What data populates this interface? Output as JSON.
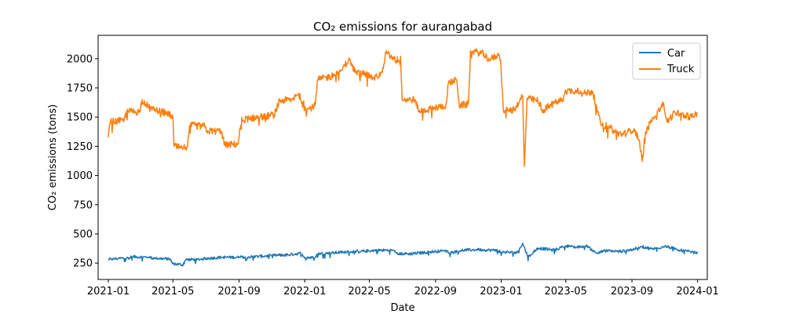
{
  "chart_data": {
    "type": "line",
    "title": "CO₂ emissions for aurangabad",
    "xlabel": "Date",
    "ylabel": "CO₂ emissions (tons)",
    "xlim": [
      "2020-12-13",
      "2024-01-19"
    ],
    "ylim": [
      110,
      2200
    ],
    "x_ticks": [
      "2021-01",
      "2021-05",
      "2021-09",
      "2022-01",
      "2022-05",
      "2022-09",
      "2023-01",
      "2023-05",
      "2023-09",
      "2024-01"
    ],
    "y_ticks": [
      250,
      500,
      750,
      1000,
      1250,
      1500,
      1750,
      2000
    ],
    "legend": {
      "position": "top-right"
    },
    "grid": false,
    "series": [
      {
        "name": "Car",
        "color": "#1f77b4",
        "points": [
          [
            "2021-01-01",
            280
          ],
          [
            "2021-01-20",
            290
          ],
          [
            "2021-02-10",
            295
          ],
          [
            "2021-02-15",
            305
          ],
          [
            "2021-03-15",
            300
          ],
          [
            "2021-04-01",
            290
          ],
          [
            "2021-04-25",
            285
          ],
          [
            "2021-04-30",
            245
          ],
          [
            "2021-05-20",
            235
          ],
          [
            "2021-05-25",
            280
          ],
          [
            "2021-06-15",
            280
          ],
          [
            "2021-07-01",
            290
          ],
          [
            "2021-08-01",
            300
          ],
          [
            "2021-09-01",
            300
          ],
          [
            "2021-10-01",
            305
          ],
          [
            "2021-11-01",
            315
          ],
          [
            "2021-12-01",
            320
          ],
          [
            "2021-12-25",
            335
          ],
          [
            "2022-01-01",
            300
          ],
          [
            "2022-01-20",
            295
          ],
          [
            "2022-01-25",
            330
          ],
          [
            "2022-02-15",
            335
          ],
          [
            "2022-03-15",
            345
          ],
          [
            "2022-04-15",
            350
          ],
          [
            "2022-05-15",
            360
          ],
          [
            "2022-06-15",
            360
          ],
          [
            "2022-06-25",
            330
          ],
          [
            "2022-07-20",
            330
          ],
          [
            "2022-08-20",
            345
          ],
          [
            "2022-09-15",
            355
          ],
          [
            "2022-10-01",
            340
          ],
          [
            "2022-10-20",
            360
          ],
          [
            "2022-11-20",
            365
          ],
          [
            "2022-12-20",
            360
          ],
          [
            "2023-01-01",
            345
          ],
          [
            "2023-02-01",
            340
          ],
          [
            "2023-02-10",
            420
          ],
          [
            "2023-02-20",
            300
          ],
          [
            "2023-03-10",
            380
          ],
          [
            "2023-04-10",
            360
          ],
          [
            "2023-05-01",
            400
          ],
          [
            "2023-05-20",
            385
          ],
          [
            "2023-06-10",
            395
          ],
          [
            "2023-06-25",
            340
          ],
          [
            "2023-07-15",
            355
          ],
          [
            "2023-08-10",
            350
          ],
          [
            "2023-09-01",
            365
          ],
          [
            "2023-09-20",
            390
          ],
          [
            "2023-10-10",
            370
          ],
          [
            "2023-11-01",
            395
          ],
          [
            "2023-12-01",
            360
          ],
          [
            "2024-01-01",
            335
          ]
        ]
      },
      {
        "name": "Truck",
        "color": "#ff7f0e",
        "points": [
          [
            "2021-01-01",
            1400
          ],
          [
            "2021-01-05",
            1460
          ],
          [
            "2021-01-30",
            1470
          ],
          [
            "2021-02-05",
            1550
          ],
          [
            "2021-03-01",
            1545
          ],
          [
            "2021-03-05",
            1650
          ],
          [
            "2021-03-20",
            1570
          ],
          [
            "2021-04-20",
            1535
          ],
          [
            "2021-05-01",
            1500
          ],
          [
            "2021-05-03",
            1250
          ],
          [
            "2021-05-15",
            1235
          ],
          [
            "2021-05-28",
            1245
          ],
          [
            "2021-06-01",
            1430
          ],
          [
            "2021-06-30",
            1420
          ],
          [
            "2021-07-05",
            1380
          ],
          [
            "2021-07-30",
            1380
          ],
          [
            "2021-08-05",
            1260
          ],
          [
            "2021-08-30",
            1270
          ],
          [
            "2021-09-05",
            1470
          ],
          [
            "2021-09-20",
            1490
          ],
          [
            "2021-10-10",
            1500
          ],
          [
            "2021-11-05",
            1520
          ],
          [
            "2021-11-15",
            1640
          ],
          [
            "2021-12-10",
            1650
          ],
          [
            "2021-12-20",
            1700
          ],
          [
            "2022-01-05",
            1560
          ],
          [
            "2022-01-20",
            1600
          ],
          [
            "2022-01-25",
            1820
          ],
          [
            "2022-02-20",
            1850
          ],
          [
            "2022-03-10",
            1900
          ],
          [
            "2022-03-25",
            2000
          ],
          [
            "2022-04-05",
            1880
          ],
          [
            "2022-04-25",
            1870
          ],
          [
            "2022-05-10",
            1830
          ],
          [
            "2022-05-25",
            1880
          ],
          [
            "2022-06-01",
            2050
          ],
          [
            "2022-06-20",
            1980
          ],
          [
            "2022-06-28",
            2020
          ],
          [
            "2022-07-01",
            1650
          ],
          [
            "2022-07-25",
            1650
          ],
          [
            "2022-08-01",
            1550
          ],
          [
            "2022-08-25",
            1570
          ],
          [
            "2022-09-20",
            1600
          ],
          [
            "2022-09-25",
            1790
          ],
          [
            "2022-10-10",
            1820
          ],
          [
            "2022-10-15",
            1600
          ],
          [
            "2022-11-01",
            1610
          ],
          [
            "2022-11-05",
            2070
          ],
          [
            "2022-11-30",
            2040
          ],
          [
            "2022-12-10",
            1990
          ],
          [
            "2022-12-25",
            2030
          ],
          [
            "2022-12-31",
            1990
          ],
          [
            "2023-01-05",
            1560
          ],
          [
            "2023-01-25",
            1560
          ],
          [
            "2023-02-05",
            1650
          ],
          [
            "2023-02-10",
            1680
          ],
          [
            "2023-02-13",
            1080
          ],
          [
            "2023-02-18",
            1660
          ],
          [
            "2023-03-10",
            1640
          ],
          [
            "2023-03-20",
            1560
          ],
          [
            "2023-04-10",
            1620
          ],
          [
            "2023-04-25",
            1650
          ],
          [
            "2023-05-01",
            1720
          ],
          [
            "2023-05-20",
            1730
          ],
          [
            "2023-06-01",
            1700
          ],
          [
            "2023-06-20",
            1720
          ],
          [
            "2023-06-28",
            1560
          ],
          [
            "2023-07-05",
            1440
          ],
          [
            "2023-07-20",
            1420
          ],
          [
            "2023-08-01",
            1370
          ],
          [
            "2023-08-15",
            1350
          ],
          [
            "2023-09-05",
            1400
          ],
          [
            "2023-09-15",
            1300
          ],
          [
            "2023-09-20",
            1120
          ],
          [
            "2023-09-25",
            1350
          ],
          [
            "2023-10-10",
            1500
          ],
          [
            "2023-10-20",
            1560
          ],
          [
            "2023-10-30",
            1620
          ],
          [
            "2023-11-05",
            1460
          ],
          [
            "2023-11-20",
            1540
          ],
          [
            "2023-12-10",
            1510
          ],
          [
            "2023-12-25",
            1500
          ],
          [
            "2024-01-01",
            1540
          ]
        ]
      }
    ]
  }
}
